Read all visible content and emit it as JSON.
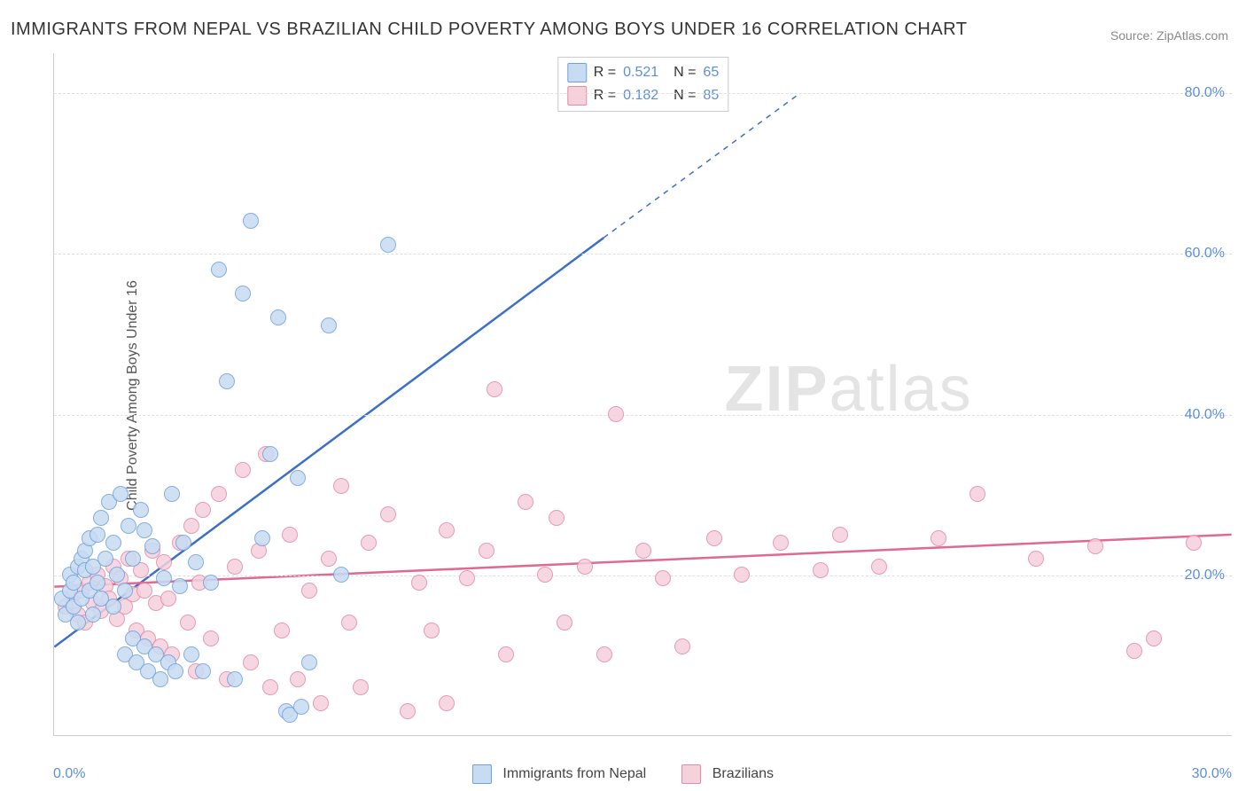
{
  "chart": {
    "type": "scatter",
    "title": "IMMIGRANTS FROM NEPAL VS BRAZILIAN CHILD POVERTY AMONG BOYS UNDER 16 CORRELATION CHART",
    "source_label": "Source:",
    "source_name": "ZipAtlas.com",
    "ylabel": "Child Poverty Among Boys Under 16",
    "watermark": "ZIPatlas",
    "background_color": "#ffffff",
    "grid_color": "#e0e0e0",
    "axis_color": "#cccccc",
    "tick_color": "#5b8fd6",
    "title_color": "#333333",
    "title_fontsize": 20,
    "label_fontsize": 16,
    "tick_fontsize": 16,
    "xlim": [
      0,
      30
    ],
    "ylim": [
      0,
      85
    ],
    "yticks": [
      20,
      40,
      60,
      80
    ],
    "ytick_labels": [
      "20.0%",
      "40.0%",
      "60.0%",
      "80.0%"
    ],
    "xtick_left": "0.0%",
    "xtick_right": "30.0%",
    "marker_radius": 9,
    "marker_border_width": 1.5,
    "series": {
      "nepal": {
        "label": "Immigrants from Nepal",
        "fill": "#c7dbf2",
        "stroke": "#6fa0dd",
        "line_color": "#3c6fc9",
        "line_width": 2.5,
        "R": "0.521",
        "N": "65",
        "trend": {
          "x1": 0,
          "y1": 11,
          "x2": 14,
          "y2": 62,
          "dash_to_x": 19,
          "dash_to_y": 80
        },
        "points": [
          [
            0.2,
            17
          ],
          [
            0.3,
            15
          ],
          [
            0.4,
            18
          ],
          [
            0.4,
            20
          ],
          [
            0.5,
            16
          ],
          [
            0.5,
            19
          ],
          [
            0.6,
            14
          ],
          [
            0.6,
            21
          ],
          [
            0.7,
            17
          ],
          [
            0.7,
            22
          ],
          [
            0.8,
            20.5
          ],
          [
            0.8,
            23
          ],
          [
            0.9,
            18
          ],
          [
            0.9,
            24.5
          ],
          [
            1.0,
            15
          ],
          [
            1.0,
            21
          ],
          [
            1.1,
            19
          ],
          [
            1.1,
            25
          ],
          [
            1.2,
            17
          ],
          [
            1.2,
            27
          ],
          [
            1.3,
            22
          ],
          [
            1.4,
            29
          ],
          [
            1.5,
            16
          ],
          [
            1.5,
            24
          ],
          [
            1.6,
            20
          ],
          [
            1.7,
            30
          ],
          [
            1.8,
            10
          ],
          [
            1.8,
            18
          ],
          [
            1.9,
            26
          ],
          [
            2.0,
            12
          ],
          [
            2.0,
            22
          ],
          [
            2.1,
            9
          ],
          [
            2.2,
            28
          ],
          [
            2.3,
            11
          ],
          [
            2.3,
            25.5
          ],
          [
            2.4,
            8
          ],
          [
            2.5,
            23.5
          ],
          [
            2.6,
            10
          ],
          [
            2.7,
            7
          ],
          [
            2.8,
            19.5
          ],
          [
            2.9,
            9
          ],
          [
            3.0,
            30
          ],
          [
            3.1,
            8
          ],
          [
            3.2,
            18.5
          ],
          [
            3.3,
            24
          ],
          [
            3.5,
            10
          ],
          [
            3.6,
            21.5
          ],
          [
            3.8,
            8
          ],
          [
            4.0,
            19
          ],
          [
            4.2,
            58
          ],
          [
            4.4,
            44
          ],
          [
            4.6,
            7
          ],
          [
            4.8,
            55
          ],
          [
            5.0,
            64
          ],
          [
            5.3,
            24.5
          ],
          [
            5.5,
            35
          ],
          [
            5.7,
            52
          ],
          [
            5.9,
            3
          ],
          [
            6.2,
            32
          ],
          [
            6.5,
            9
          ],
          [
            7.0,
            51
          ],
          [
            7.3,
            20
          ],
          [
            8.5,
            61
          ],
          [
            6.0,
            2.5
          ],
          [
            6.3,
            3.5
          ]
        ]
      },
      "brazil": {
        "label": "Brazilians",
        "fill": "#f5d1dc",
        "stroke": "#e28aa6",
        "line_color": "#e06994",
        "line_width": 2.5,
        "R": "0.182",
        "N": "85",
        "trend": {
          "x1": 0,
          "y1": 18.5,
          "x2": 30,
          "y2": 25
        },
        "points": [
          [
            0.3,
            16
          ],
          [
            0.5,
            17.5
          ],
          [
            0.6,
            15
          ],
          [
            0.7,
            18
          ],
          [
            0.8,
            14
          ],
          [
            0.9,
            19
          ],
          [
            1.0,
            16.5
          ],
          [
            1.1,
            20
          ],
          [
            1.2,
            15.5
          ],
          [
            1.3,
            18.5
          ],
          [
            1.4,
            17
          ],
          [
            1.5,
            21
          ],
          [
            1.6,
            14.5
          ],
          [
            1.7,
            19.5
          ],
          [
            1.8,
            16
          ],
          [
            1.9,
            22
          ],
          [
            2.0,
            17.5
          ],
          [
            2.1,
            13
          ],
          [
            2.2,
            20.5
          ],
          [
            2.3,
            18
          ],
          [
            2.4,
            12
          ],
          [
            2.5,
            23
          ],
          [
            2.6,
            16.5
          ],
          [
            2.7,
            11
          ],
          [
            2.8,
            21.5
          ],
          [
            2.9,
            17
          ],
          [
            3.0,
            10
          ],
          [
            3.2,
            24
          ],
          [
            3.4,
            14
          ],
          [
            3.5,
            26
          ],
          [
            3.6,
            8
          ],
          [
            3.7,
            19
          ],
          [
            3.8,
            28
          ],
          [
            4.0,
            12
          ],
          [
            4.2,
            30
          ],
          [
            4.4,
            7
          ],
          [
            4.6,
            21
          ],
          [
            4.8,
            33
          ],
          [
            5.0,
            9
          ],
          [
            5.2,
            23
          ],
          [
            5.4,
            35
          ],
          [
            5.5,
            6
          ],
          [
            5.8,
            13
          ],
          [
            6.0,
            25
          ],
          [
            6.2,
            7
          ],
          [
            6.5,
            18
          ],
          [
            6.8,
            4
          ],
          [
            7.0,
            22
          ],
          [
            7.3,
            31
          ],
          [
            7.5,
            14
          ],
          [
            7.8,
            6
          ],
          [
            8.0,
            24
          ],
          [
            8.5,
            27.5
          ],
          [
            9.0,
            3
          ],
          [
            9.3,
            19
          ],
          [
            9.6,
            13
          ],
          [
            10.0,
            25.5
          ],
          [
            10.0,
            4
          ],
          [
            10.5,
            19.5
          ],
          [
            11.0,
            23
          ],
          [
            11.2,
            43
          ],
          [
            11.5,
            10
          ],
          [
            12.0,
            29
          ],
          [
            12.5,
            20
          ],
          [
            12.8,
            27
          ],
          [
            13.0,
            14
          ],
          [
            13.5,
            21
          ],
          [
            14.0,
            10
          ],
          [
            14.3,
            40
          ],
          [
            15.0,
            23
          ],
          [
            15.5,
            19.5
          ],
          [
            16.0,
            11
          ],
          [
            16.8,
            24.5
          ],
          [
            17.5,
            20
          ],
          [
            18.5,
            24
          ],
          [
            19.5,
            20.5
          ],
          [
            20.0,
            25
          ],
          [
            21.0,
            21
          ],
          [
            22.5,
            24.5
          ],
          [
            23.5,
            30
          ],
          [
            25.0,
            22
          ],
          [
            26.5,
            23.5
          ],
          [
            27.5,
            10.5
          ],
          [
            28.0,
            12
          ],
          [
            29.0,
            24
          ]
        ]
      }
    }
  }
}
